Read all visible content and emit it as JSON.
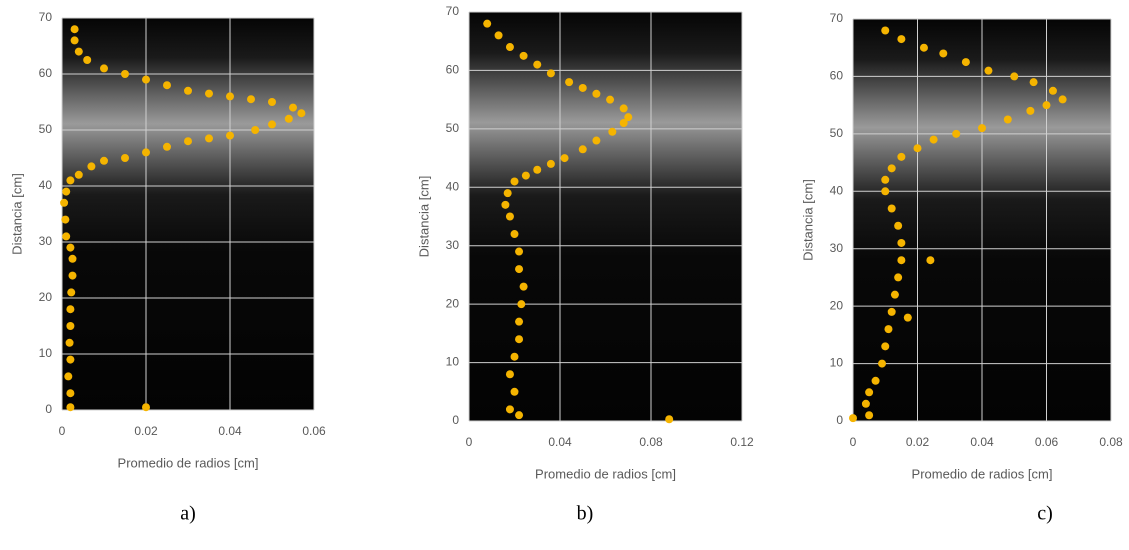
{
  "chart_data": [
    {
      "type": "scatter",
      "caption": "a)",
      "xlabel": "Promedio de radios [cm]",
      "ylabel": "Distancia [cm]",
      "color": "#f5b400",
      "grid": true,
      "xlim": [
        0,
        0.06
      ],
      "xticks": [
        0,
        0.02,
        0.04,
        0.06
      ],
      "ylim": [
        0,
        70
      ],
      "yticks": [
        0,
        10,
        20,
        30,
        40,
        50,
        60,
        70
      ],
      "x": [
        0.002,
        0.002,
        0.0015,
        0.002,
        0.0018,
        0.002,
        0.002,
        0.0022,
        0.0025,
        0.0025,
        0.002,
        0.001,
        0.0008,
        0.0005,
        0.001,
        0.002,
        0.004,
        0.007,
        0.01,
        0.015,
        0.02,
        0.025,
        0.03,
        0.035,
        0.04,
        0.046,
        0.05,
        0.054,
        0.057,
        0.055,
        0.05,
        0.045,
        0.04,
        0.035,
        0.03,
        0.025,
        0.02,
        0.015,
        0.01,
        0.006,
        0.004,
        0.003,
        0.003,
        0.02
      ],
      "values": [
        0.5,
        3,
        6,
        9,
        12,
        15,
        18,
        21,
        24,
        27,
        29,
        31,
        34,
        37,
        39,
        41,
        42,
        43.5,
        44.5,
        45,
        46,
        47,
        48,
        48.5,
        49,
        50,
        51,
        52,
        53,
        54,
        55,
        55.5,
        56,
        56.5,
        57,
        58,
        59,
        60,
        61,
        62.5,
        64,
        66,
        68,
        0.5
      ]
    },
    {
      "type": "scatter",
      "caption": "b)",
      "xlabel": "Promedio de radios [cm]",
      "ylabel": "Distancia [cm]",
      "color": "#f5b400",
      "grid": true,
      "xlim": [
        0,
        0.12
      ],
      "xticks": [
        0,
        0.04,
        0.08,
        0.12
      ],
      "ylim": [
        0,
        70
      ],
      "yticks": [
        0,
        10,
        20,
        30,
        40,
        50,
        60,
        70
      ],
      "x": [
        0.022,
        0.018,
        0.02,
        0.018,
        0.02,
        0.022,
        0.022,
        0.023,
        0.024,
        0.022,
        0.022,
        0.02,
        0.018,
        0.016,
        0.017,
        0.02,
        0.025,
        0.03,
        0.036,
        0.042,
        0.05,
        0.056,
        0.063,
        0.068,
        0.07,
        0.068,
        0.062,
        0.056,
        0.05,
        0.044,
        0.036,
        0.03,
        0.024,
        0.018,
        0.013,
        0.008,
        0.088
      ],
      "values": [
        1,
        2,
        5,
        8,
        11,
        14,
        17,
        20,
        23,
        26,
        29,
        32,
        35,
        37,
        39,
        41,
        42,
        43,
        44,
        45,
        46.5,
        48,
        49.5,
        51,
        52,
        53.5,
        55,
        56,
        57,
        58,
        59.5,
        61,
        62.5,
        64,
        66,
        68,
        0.3
      ]
    },
    {
      "type": "scatter",
      "caption": "c)",
      "xlabel": "Promedio de radios [cm]",
      "ylabel": "Distancia [cm]",
      "color": "#f5b400",
      "grid": true,
      "xlim": [
        0,
        0.08
      ],
      "xticks": [
        0,
        0.02,
        0.04,
        0.06,
        0.08
      ],
      "ylim": [
        0,
        70
      ],
      "yticks": [
        0,
        10,
        20,
        30,
        40,
        50,
        60,
        70
      ],
      "x": [
        0,
        0.005,
        0.004,
        0.005,
        0.007,
        0.009,
        0.01,
        0.011,
        0.012,
        0.013,
        0.014,
        0.015,
        0.015,
        0.014,
        0.012,
        0.01,
        0.01,
        0.012,
        0.015,
        0.02,
        0.025,
        0.032,
        0.04,
        0.048,
        0.055,
        0.06,
        0.065,
        0.062,
        0.056,
        0.05,
        0.042,
        0.035,
        0.028,
        0.022,
        0.015,
        0.01,
        0.024,
        0.017
      ],
      "values": [
        0.5,
        1,
        3,
        5,
        7,
        10,
        13,
        16,
        19,
        22,
        25,
        28,
        31,
        34,
        37,
        40,
        42,
        44,
        46,
        47.5,
        49,
        50,
        51,
        52.5,
        54,
        55,
        56,
        57.5,
        59,
        60,
        61,
        62.5,
        64,
        65,
        66.5,
        68,
        28,
        18
      ]
    }
  ]
}
